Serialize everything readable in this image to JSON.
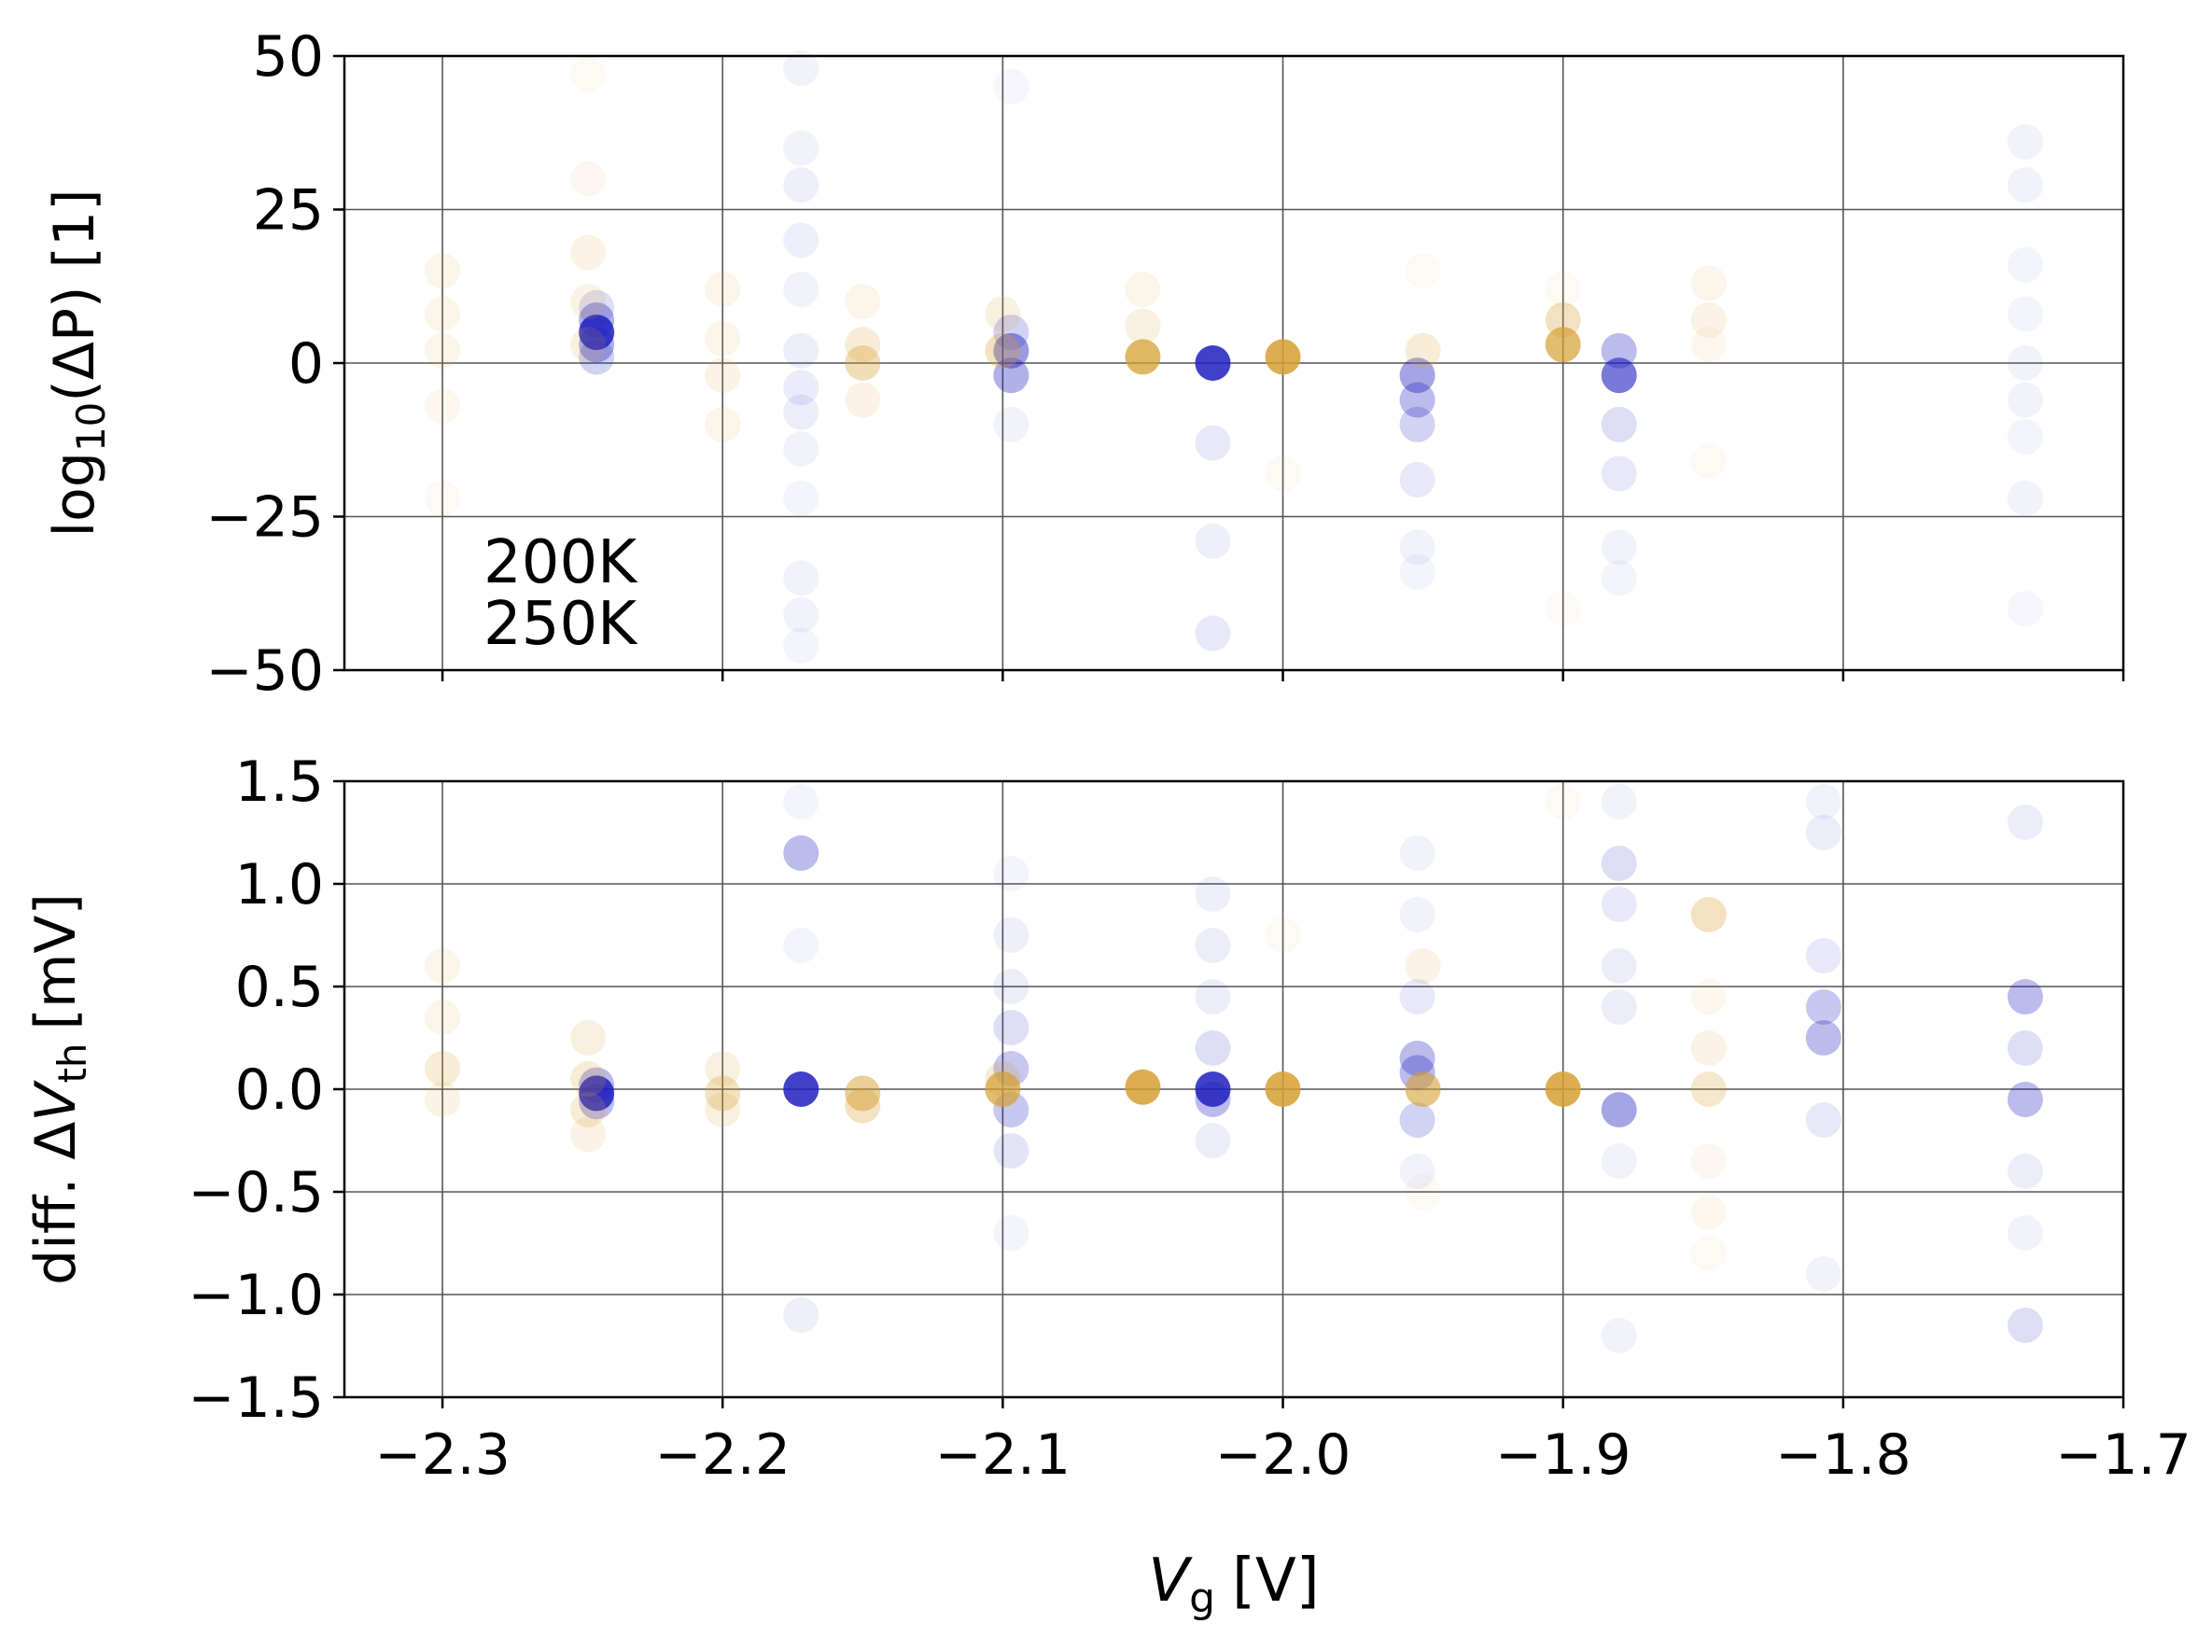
{
  "figure": {
    "xlabel_var": "V",
    "xlabel_sub": "g",
    "xlabel_unit": "[V]"
  },
  "legend": {
    "placement": "lower-left of top panel",
    "entries": [
      {
        "label": "200K",
        "color": "#1f1fbf"
      },
      {
        "label": "250K",
        "color": "#d6a032"
      }
    ]
  },
  "chart_data": [
    {
      "type": "scatter",
      "panel": "top",
      "ylabel_main": "log",
      "ylabel_sub": "10",
      "ylabel_rest": "(ΔP) [1]",
      "xlim": [
        -2.335,
        -1.7
      ],
      "ylim": [
        -50,
        50
      ],
      "xticks": [
        -2.3,
        -2.2,
        -2.1,
        -2.0,
        -1.9,
        -1.8,
        -1.7
      ],
      "yticks": [
        -50,
        -25,
        0,
        25,
        50
      ],
      "ytick_labels": [
        "−50",
        "−25",
        "0",
        "25",
        "50"
      ],
      "grid": true,
      "show_xtick_labels": false,
      "series": [
        {
          "name": "200K",
          "color": "#1f1fbf",
          "points": [
            {
              "x": -2.245,
              "y": 5,
              "alpha": 0.85
            },
            {
              "x": -2.245,
              "y": 7,
              "alpha": 0.35
            },
            {
              "x": -2.245,
              "y": 3,
              "alpha": 0.35
            },
            {
              "x": -2.245,
              "y": 1,
              "alpha": 0.2
            },
            {
              "x": -2.245,
              "y": 9,
              "alpha": 0.15
            },
            {
              "x": -2.172,
              "y": 48,
              "alpha": 0.06
            },
            {
              "x": -2.172,
              "y": 35,
              "alpha": 0.06
            },
            {
              "x": -2.172,
              "y": 29,
              "alpha": 0.07
            },
            {
              "x": -2.172,
              "y": 20,
              "alpha": 0.07
            },
            {
              "x": -2.172,
              "y": 12,
              "alpha": 0.06
            },
            {
              "x": -2.172,
              "y": 2,
              "alpha": 0.08
            },
            {
              "x": -2.172,
              "y": -4,
              "alpha": 0.09
            },
            {
              "x": -2.172,
              "y": -8,
              "alpha": 0.08
            },
            {
              "x": -2.172,
              "y": -14,
              "alpha": 0.06
            },
            {
              "x": -2.172,
              "y": -22,
              "alpha": 0.05
            },
            {
              "x": -2.172,
              "y": -35,
              "alpha": 0.06
            },
            {
              "x": -2.172,
              "y": -41,
              "alpha": 0.06
            },
            {
              "x": -2.172,
              "y": -46,
              "alpha": 0.05
            },
            {
              "x": -2.097,
              "y": 2,
              "alpha": 0.45
            },
            {
              "x": -2.097,
              "y": -2,
              "alpha": 0.35
            },
            {
              "x": -2.097,
              "y": 5,
              "alpha": 0.2
            },
            {
              "x": -2.097,
              "y": -10,
              "alpha": 0.06
            },
            {
              "x": -2.097,
              "y": 45,
              "alpha": 0.04
            },
            {
              "x": -2.025,
              "y": 0,
              "alpha": 0.85
            },
            {
              "x": -2.025,
              "y": -13,
              "alpha": 0.1
            },
            {
              "x": -2.025,
              "y": -29,
              "alpha": 0.07
            },
            {
              "x": -2.025,
              "y": -44,
              "alpha": 0.1
            },
            {
              "x": -1.952,
              "y": -2,
              "alpha": 0.4
            },
            {
              "x": -1.952,
              "y": -6,
              "alpha": 0.3
            },
            {
              "x": -1.952,
              "y": -10,
              "alpha": 0.2
            },
            {
              "x": -1.952,
              "y": -19,
              "alpha": 0.1
            },
            {
              "x": -1.952,
              "y": -30,
              "alpha": 0.06
            },
            {
              "x": -1.952,
              "y": -34,
              "alpha": 0.05
            },
            {
              "x": -1.88,
              "y": -2,
              "alpha": 0.6
            },
            {
              "x": -1.88,
              "y": 2,
              "alpha": 0.3
            },
            {
              "x": -1.88,
              "y": -10,
              "alpha": 0.15
            },
            {
              "x": -1.88,
              "y": -18,
              "alpha": 0.1
            },
            {
              "x": -1.88,
              "y": -30,
              "alpha": 0.06
            },
            {
              "x": -1.88,
              "y": -35,
              "alpha": 0.05
            },
            {
              "x": -1.735,
              "y": 36,
              "alpha": 0.06
            },
            {
              "x": -1.735,
              "y": 29,
              "alpha": 0.06
            },
            {
              "x": -1.735,
              "y": 16,
              "alpha": 0.05
            },
            {
              "x": -1.735,
              "y": 8,
              "alpha": 0.05
            },
            {
              "x": -1.735,
              "y": 0,
              "alpha": 0.06
            },
            {
              "x": -1.735,
              "y": -6,
              "alpha": 0.06
            },
            {
              "x": -1.735,
              "y": -12,
              "alpha": 0.05
            },
            {
              "x": -1.735,
              "y": -22,
              "alpha": 0.06
            },
            {
              "x": -1.735,
              "y": -40,
              "alpha": 0.04
            }
          ]
        },
        {
          "name": "250K",
          "color": "#d6a032",
          "points": [
            {
              "x": -2.3,
              "y": 15,
              "alpha": 0.1
            },
            {
              "x": -2.3,
              "y": 8,
              "alpha": 0.1
            },
            {
              "x": -2.3,
              "y": 2,
              "alpha": 0.1
            },
            {
              "x": -2.3,
              "y": -7,
              "alpha": 0.08
            },
            {
              "x": -2.3,
              "y": -22,
              "alpha": 0.05
            },
            {
              "x": -2.248,
              "y": 47,
              "alpha": 0.06
            },
            {
              "x": -2.248,
              "y": 30,
              "alpha": 0.07
            },
            {
              "x": -2.248,
              "y": 18,
              "alpha": 0.12
            },
            {
              "x": -2.248,
              "y": 10,
              "alpha": 0.12
            },
            {
              "x": -2.248,
              "y": 3,
              "alpha": 0.15
            },
            {
              "x": -2.2,
              "y": 12,
              "alpha": 0.1
            },
            {
              "x": -2.2,
              "y": 4,
              "alpha": 0.1
            },
            {
              "x": -2.2,
              "y": -2,
              "alpha": 0.12
            },
            {
              "x": -2.2,
              "y": -10,
              "alpha": 0.1
            },
            {
              "x": -2.15,
              "y": 10,
              "alpha": 0.1
            },
            {
              "x": -2.15,
              "y": 3,
              "alpha": 0.2
            },
            {
              "x": -2.15,
              "y": 0,
              "alpha": 0.35
            },
            {
              "x": -2.15,
              "y": -6,
              "alpha": 0.12
            },
            {
              "x": -2.1,
              "y": 8,
              "alpha": 0.15
            },
            {
              "x": -2.1,
              "y": 2,
              "alpha": 0.3
            },
            {
              "x": -2.05,
              "y": 12,
              "alpha": 0.1
            },
            {
              "x": -2.05,
              "y": 6,
              "alpha": 0.15
            },
            {
              "x": -2.05,
              "y": 1,
              "alpha": 0.75
            },
            {
              "x": -2.0,
              "y": 1,
              "alpha": 0.85
            },
            {
              "x": -2.0,
              "y": -18,
              "alpha": 0.05
            },
            {
              "x": -1.95,
              "y": 15,
              "alpha": 0.05
            },
            {
              "x": -1.95,
              "y": 2,
              "alpha": 0.2
            },
            {
              "x": -1.9,
              "y": 3,
              "alpha": 0.7
            },
            {
              "x": -1.9,
              "y": 7,
              "alpha": 0.3
            },
            {
              "x": -1.9,
              "y": 12,
              "alpha": 0.06
            },
            {
              "x": -1.9,
              "y": -40,
              "alpha": 0.04
            },
            {
              "x": -1.848,
              "y": 13,
              "alpha": 0.1
            },
            {
              "x": -1.848,
              "y": 7,
              "alpha": 0.12
            },
            {
              "x": -1.848,
              "y": 3,
              "alpha": 0.08
            },
            {
              "x": -1.848,
              "y": -16,
              "alpha": 0.05
            }
          ]
        }
      ]
    },
    {
      "type": "scatter",
      "panel": "bottom",
      "ylabel_pre": "diff. Δ",
      "ylabel_var": "V",
      "ylabel_sub": "th",
      "ylabel_unit": "[mV]",
      "xlim": [
        -2.335,
        -1.7
      ],
      "ylim": [
        -1.5,
        1.5
      ],
      "xticks": [
        -2.3,
        -2.2,
        -2.1,
        -2.0,
        -1.9,
        -1.8,
        -1.7
      ],
      "xtick_labels": [
        "−2.3",
        "−2.2",
        "−2.1",
        "−2.0",
        "−1.9",
        "−1.8",
        "−1.7"
      ],
      "yticks": [
        -1.5,
        -1.0,
        -0.5,
        0.0,
        0.5,
        1.0,
        1.5
      ],
      "ytick_labels": [
        "−1.5",
        "−1.0",
        "−0.5",
        "0.0",
        "0.5",
        "1.0",
        "1.5"
      ],
      "grid": true,
      "show_xtick_labels": true,
      "series": [
        {
          "name": "200K",
          "color": "#1f1fbf",
          "points": [
            {
              "x": -2.245,
              "y": -0.02,
              "alpha": 0.85
            },
            {
              "x": -2.245,
              "y": -0.06,
              "alpha": 0.3
            },
            {
              "x": -2.245,
              "y": 0.02,
              "alpha": 0.3
            },
            {
              "x": -2.172,
              "y": 1.15,
              "alpha": 0.3
            },
            {
              "x": -2.172,
              "y": 1.4,
              "alpha": 0.05
            },
            {
              "x": -2.172,
              "y": 0.7,
              "alpha": 0.05
            },
            {
              "x": -2.172,
              "y": 0.0,
              "alpha": 0.85
            },
            {
              "x": -2.172,
              "y": -1.1,
              "alpha": 0.07
            },
            {
              "x": -2.097,
              "y": 1.05,
              "alpha": 0.05
            },
            {
              "x": -2.097,
              "y": 0.75,
              "alpha": 0.07
            },
            {
              "x": -2.097,
              "y": 0.5,
              "alpha": 0.08
            },
            {
              "x": -2.097,
              "y": 0.3,
              "alpha": 0.15
            },
            {
              "x": -2.097,
              "y": 0.1,
              "alpha": 0.25
            },
            {
              "x": -2.097,
              "y": -0.1,
              "alpha": 0.25
            },
            {
              "x": -2.097,
              "y": -0.3,
              "alpha": 0.12
            },
            {
              "x": -2.097,
              "y": -0.7,
              "alpha": 0.05
            },
            {
              "x": -2.025,
              "y": 0.95,
              "alpha": 0.07
            },
            {
              "x": -2.025,
              "y": 0.7,
              "alpha": 0.08
            },
            {
              "x": -2.025,
              "y": 0.45,
              "alpha": 0.08
            },
            {
              "x": -2.025,
              "y": 0.2,
              "alpha": 0.15
            },
            {
              "x": -2.025,
              "y": 0.0,
              "alpha": 0.85
            },
            {
              "x": -2.025,
              "y": -0.05,
              "alpha": 0.3
            },
            {
              "x": -2.025,
              "y": -0.25,
              "alpha": 0.08
            },
            {
              "x": -1.952,
              "y": 1.15,
              "alpha": 0.06
            },
            {
              "x": -1.952,
              "y": 0.85,
              "alpha": 0.06
            },
            {
              "x": -1.952,
              "y": 0.45,
              "alpha": 0.1
            },
            {
              "x": -1.952,
              "y": 0.15,
              "alpha": 0.3
            },
            {
              "x": -1.952,
              "y": 0.08,
              "alpha": 0.3
            },
            {
              "x": -1.952,
              "y": -0.15,
              "alpha": 0.2
            },
            {
              "x": -1.952,
              "y": -0.4,
              "alpha": 0.06
            },
            {
              "x": -1.88,
              "y": 1.4,
              "alpha": 0.06
            },
            {
              "x": -1.88,
              "y": 1.1,
              "alpha": 0.15
            },
            {
              "x": -1.88,
              "y": 0.9,
              "alpha": 0.1
            },
            {
              "x": -1.88,
              "y": 0.6,
              "alpha": 0.08
            },
            {
              "x": -1.88,
              "y": 0.4,
              "alpha": 0.08
            },
            {
              "x": -1.88,
              "y": -0.1,
              "alpha": 0.4
            },
            {
              "x": -1.88,
              "y": -0.35,
              "alpha": 0.06
            },
            {
              "x": -1.88,
              "y": -1.2,
              "alpha": 0.06
            },
            {
              "x": -1.807,
              "y": 1.4,
              "alpha": 0.06
            },
            {
              "x": -1.807,
              "y": 1.25,
              "alpha": 0.08
            },
            {
              "x": -1.807,
              "y": 0.65,
              "alpha": 0.1
            },
            {
              "x": -1.807,
              "y": 0.4,
              "alpha": 0.25
            },
            {
              "x": -1.807,
              "y": 0.25,
              "alpha": 0.3
            },
            {
              "x": -1.807,
              "y": -0.15,
              "alpha": 0.1
            },
            {
              "x": -1.807,
              "y": -0.9,
              "alpha": 0.06
            },
            {
              "x": -1.735,
              "y": 1.3,
              "alpha": 0.08
            },
            {
              "x": -1.735,
              "y": 0.45,
              "alpha": 0.3
            },
            {
              "x": -1.735,
              "y": 0.2,
              "alpha": 0.15
            },
            {
              "x": -1.735,
              "y": -0.05,
              "alpha": 0.3
            },
            {
              "x": -1.735,
              "y": -0.4,
              "alpha": 0.08
            },
            {
              "x": -1.735,
              "y": -0.7,
              "alpha": 0.06
            },
            {
              "x": -1.735,
              "y": -1.15,
              "alpha": 0.15
            }
          ]
        },
        {
          "name": "250K",
          "color": "#d6a032",
          "points": [
            {
              "x": -2.3,
              "y": 0.6,
              "alpha": 0.1
            },
            {
              "x": -2.3,
              "y": 0.35,
              "alpha": 0.1
            },
            {
              "x": -2.3,
              "y": 0.1,
              "alpha": 0.2
            },
            {
              "x": -2.3,
              "y": -0.05,
              "alpha": 0.12
            },
            {
              "x": -2.248,
              "y": 0.25,
              "alpha": 0.15
            },
            {
              "x": -2.248,
              "y": 0.05,
              "alpha": 0.2
            },
            {
              "x": -2.248,
              "y": -0.1,
              "alpha": 0.2
            },
            {
              "x": -2.248,
              "y": -0.22,
              "alpha": 0.12
            },
            {
              "x": -2.2,
              "y": 0.1,
              "alpha": 0.15
            },
            {
              "x": -2.2,
              "y": -0.02,
              "alpha": 0.3
            },
            {
              "x": -2.2,
              "y": -0.1,
              "alpha": 0.15
            },
            {
              "x": -2.15,
              "y": -0.02,
              "alpha": 0.5
            },
            {
              "x": -2.15,
              "y": -0.08,
              "alpha": 0.3
            },
            {
              "x": -2.1,
              "y": 0.0,
              "alpha": 0.7
            },
            {
              "x": -2.1,
              "y": 0.05,
              "alpha": 0.2
            },
            {
              "x": -2.05,
              "y": 0.01,
              "alpha": 0.85
            },
            {
              "x": -2.0,
              "y": 0.0,
              "alpha": 0.85
            },
            {
              "x": -2.0,
              "y": 0.75,
              "alpha": 0.05
            },
            {
              "x": -1.95,
              "y": 0.6,
              "alpha": 0.12
            },
            {
              "x": -1.95,
              "y": 0.0,
              "alpha": 0.6
            },
            {
              "x": -1.95,
              "y": -0.5,
              "alpha": 0.05
            },
            {
              "x": -1.9,
              "y": 0.0,
              "alpha": 0.85
            },
            {
              "x": -1.9,
              "y": 1.4,
              "alpha": 0.05
            },
            {
              "x": -1.848,
              "y": 0.85,
              "alpha": 0.3
            },
            {
              "x": -1.848,
              "y": 0.45,
              "alpha": 0.08
            },
            {
              "x": -1.848,
              "y": 0.2,
              "alpha": 0.12
            },
            {
              "x": -1.848,
              "y": 0.0,
              "alpha": 0.25
            },
            {
              "x": -1.848,
              "y": -0.35,
              "alpha": 0.07
            },
            {
              "x": -1.848,
              "y": -0.6,
              "alpha": 0.08
            },
            {
              "x": -1.848,
              "y": -0.8,
              "alpha": 0.05
            }
          ]
        }
      ]
    }
  ]
}
